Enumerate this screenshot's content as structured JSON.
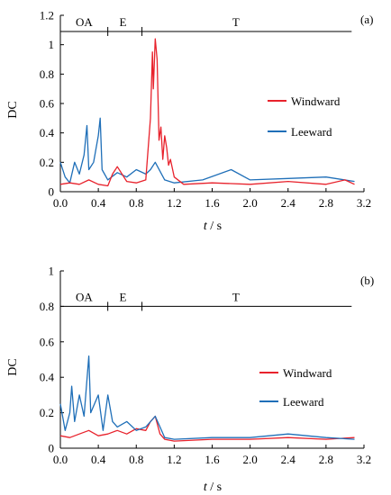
{
  "chart_data": [
    {
      "type": "line",
      "panel_label": "(a)",
      "ylabel": "DC",
      "xlabel_var": "t",
      "xlabel_unit": " / s",
      "xlim": [
        0,
        3.2
      ],
      "ylim": [
        0,
        1.2
      ],
      "x_ticks": [
        "0.0",
        "0.4",
        "0.8",
        "1.2",
        "1.6",
        "2.0",
        "2.4",
        "2.8",
        "3.2"
      ],
      "y_ticks": [
        "0",
        "0.2",
        "0.4",
        "0.6",
        "0.8",
        "1",
        "1.2"
      ],
      "phase_line": {
        "y": 1.09,
        "x_end": 3.07,
        "dividers": [
          0.5,
          0.86
        ]
      },
      "phases": [
        {
          "label": "OA",
          "x": 0.25
        },
        {
          "label": "E",
          "x": 0.66
        },
        {
          "label": "T",
          "x": 1.85
        }
      ],
      "legend_position": "right",
      "series": [
        {
          "name": "Windward",
          "color": "#e8222c",
          "points": [
            [
              0.0,
              0.05
            ],
            [
              0.1,
              0.06
            ],
            [
              0.2,
              0.05
            ],
            [
              0.3,
              0.08
            ],
            [
              0.4,
              0.05
            ],
            [
              0.5,
              0.04
            ],
            [
              0.55,
              0.12
            ],
            [
              0.6,
              0.17
            ],
            [
              0.7,
              0.07
            ],
            [
              0.8,
              0.06
            ],
            [
              0.9,
              0.08
            ],
            [
              0.95,
              0.5
            ],
            [
              0.97,
              0.95
            ],
            [
              0.98,
              0.7
            ],
            [
              1.0,
              1.04
            ],
            [
              1.02,
              0.9
            ],
            [
              1.04,
              0.35
            ],
            [
              1.06,
              0.44
            ],
            [
              1.08,
              0.22
            ],
            [
              1.1,
              0.38
            ],
            [
              1.12,
              0.3
            ],
            [
              1.14,
              0.18
            ],
            [
              1.16,
              0.22
            ],
            [
              1.2,
              0.1
            ],
            [
              1.3,
              0.05
            ],
            [
              1.6,
              0.06
            ],
            [
              2.0,
              0.05
            ],
            [
              2.4,
              0.07
            ],
            [
              2.8,
              0.05
            ],
            [
              3.0,
              0.08
            ],
            [
              3.1,
              0.05
            ]
          ]
        },
        {
          "name": "Leeward",
          "color": "#1f6fb8",
          "points": [
            [
              0.0,
              0.2
            ],
            [
              0.05,
              0.1
            ],
            [
              0.1,
              0.06
            ],
            [
              0.15,
              0.2
            ],
            [
              0.2,
              0.12
            ],
            [
              0.25,
              0.25
            ],
            [
              0.28,
              0.45
            ],
            [
              0.3,
              0.15
            ],
            [
              0.35,
              0.2
            ],
            [
              0.4,
              0.38
            ],
            [
              0.42,
              0.5
            ],
            [
              0.44,
              0.15
            ],
            [
              0.5,
              0.08
            ],
            [
              0.6,
              0.13
            ],
            [
              0.7,
              0.1
            ],
            [
              0.8,
              0.15
            ],
            [
              0.9,
              0.12
            ],
            [
              0.95,
              0.15
            ],
            [
              1.0,
              0.2
            ],
            [
              1.1,
              0.08
            ],
            [
              1.2,
              0.06
            ],
            [
              1.5,
              0.08
            ],
            [
              1.8,
              0.15
            ],
            [
              2.0,
              0.08
            ],
            [
              2.4,
              0.09
            ],
            [
              2.8,
              0.1
            ],
            [
              3.1,
              0.07
            ]
          ]
        }
      ]
    },
    {
      "type": "line",
      "panel_label": "(b)",
      "ylabel": "DC",
      "xlabel_var": "t",
      "xlabel_unit": " / s",
      "xlim": [
        0,
        3.2
      ],
      "ylim": [
        0,
        1.0
      ],
      "x_ticks": [
        "0.0",
        "0.4",
        "0.8",
        "1.2",
        "1.6",
        "2.0",
        "2.4",
        "2.8",
        "3.2"
      ],
      "y_ticks": [
        "0",
        "0.2",
        "0.4",
        "0.6",
        "0.8",
        "1"
      ],
      "phase_line": {
        "y": 0.8,
        "x_end": 3.07,
        "dividers": [
          0.5,
          0.86
        ]
      },
      "phases": [
        {
          "label": "OA",
          "x": 0.25
        },
        {
          "label": "E",
          "x": 0.66
        },
        {
          "label": "T",
          "x": 1.85
        }
      ],
      "legend_position": "right",
      "series": [
        {
          "name": "Windward",
          "color": "#e8222c",
          "points": [
            [
              0.0,
              0.07
            ],
            [
              0.1,
              0.06
            ],
            [
              0.2,
              0.08
            ],
            [
              0.3,
              0.1
            ],
            [
              0.4,
              0.07
            ],
            [
              0.5,
              0.08
            ],
            [
              0.6,
              0.1
            ],
            [
              0.7,
              0.08
            ],
            [
              0.8,
              0.11
            ],
            [
              0.9,
              0.1
            ],
            [
              0.95,
              0.15
            ],
            [
              1.0,
              0.18
            ],
            [
              1.05,
              0.08
            ],
            [
              1.1,
              0.05
            ],
            [
              1.2,
              0.04
            ],
            [
              1.6,
              0.05
            ],
            [
              2.0,
              0.05
            ],
            [
              2.4,
              0.06
            ],
            [
              2.8,
              0.05
            ],
            [
              3.1,
              0.06
            ]
          ]
        },
        {
          "name": "Leeward",
          "color": "#1f6fb8",
          "points": [
            [
              0.0,
              0.25
            ],
            [
              0.05,
              0.1
            ],
            [
              0.1,
              0.2
            ],
            [
              0.12,
              0.35
            ],
            [
              0.15,
              0.15
            ],
            [
              0.2,
              0.3
            ],
            [
              0.25,
              0.18
            ],
            [
              0.3,
              0.52
            ],
            [
              0.32,
              0.2
            ],
            [
              0.4,
              0.3
            ],
            [
              0.45,
              0.1
            ],
            [
              0.5,
              0.3
            ],
            [
              0.55,
              0.15
            ],
            [
              0.6,
              0.12
            ],
            [
              0.7,
              0.15
            ],
            [
              0.8,
              0.1
            ],
            [
              0.9,
              0.12
            ],
            [
              1.0,
              0.18
            ],
            [
              1.05,
              0.12
            ],
            [
              1.1,
              0.06
            ],
            [
              1.2,
              0.05
            ],
            [
              1.6,
              0.06
            ],
            [
              2.0,
              0.06
            ],
            [
              2.4,
              0.08
            ],
            [
              2.8,
              0.06
            ],
            [
              3.1,
              0.05
            ]
          ]
        }
      ]
    }
  ]
}
